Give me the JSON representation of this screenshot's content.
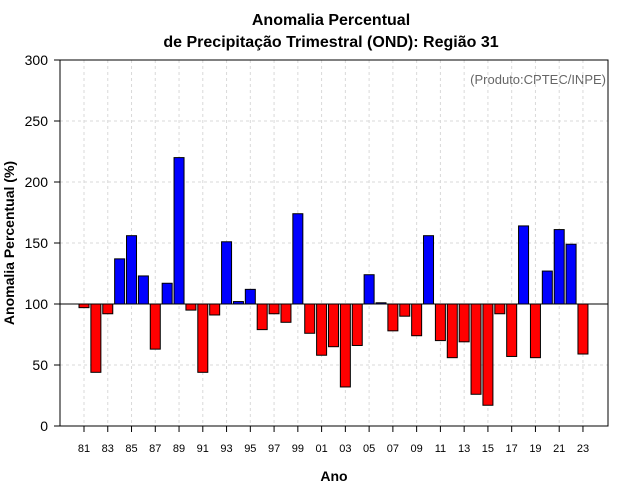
{
  "chart_data": {
    "type": "bar",
    "title": "Anomalia Percentual",
    "subtitle": "de Precipitação Trimestral (OND): Região 31",
    "xlabel": "Ano",
    "ylabel": "Anomalia Percentual (%)",
    "annotation": "(Produto:CPTEC/INPE)",
    "ylim": [
      0,
      300
    ],
    "yticks": [
      "0",
      "50",
      "100",
      "150",
      "200",
      "250",
      "300"
    ],
    "baseline": 100,
    "grid": true,
    "categories": [
      "81",
      "82",
      "83",
      "84",
      "85",
      "86",
      "87",
      "88",
      "89",
      "90",
      "91",
      "92",
      "93",
      "94",
      "95",
      "96",
      "97",
      "98",
      "99",
      "00",
      "01",
      "02",
      "03",
      "04",
      "05",
      "06",
      "07",
      "08",
      "09",
      "10",
      "11",
      "12",
      "13",
      "14",
      "15",
      "16",
      "17",
      "18",
      "19",
      "20",
      "21",
      "22",
      "23"
    ],
    "xtick_labels": [
      "81",
      "83",
      "85",
      "87",
      "89",
      "91",
      "93",
      "95",
      "97",
      "99",
      "01",
      "03",
      "05",
      "07",
      "09",
      "11",
      "13",
      "15",
      "17",
      "19",
      "21",
      "23"
    ],
    "values": [
      97,
      44,
      92,
      137,
      156,
      123,
      63,
      117,
      220,
      95,
      44,
      91,
      151,
      102,
      112,
      79,
      92,
      85,
      174,
      76,
      58,
      65,
      32,
      66,
      124,
      101,
      78,
      90,
      74,
      156,
      70,
      56,
      69,
      26,
      17,
      92,
      57,
      164,
      56,
      127,
      161,
      149,
      59
    ],
    "colors": {
      "above": "#0000ff",
      "below": "#ff0000",
      "bar_outline": "#000000",
      "grid": "#d9d9d9",
      "baseline": "#000000"
    }
  }
}
